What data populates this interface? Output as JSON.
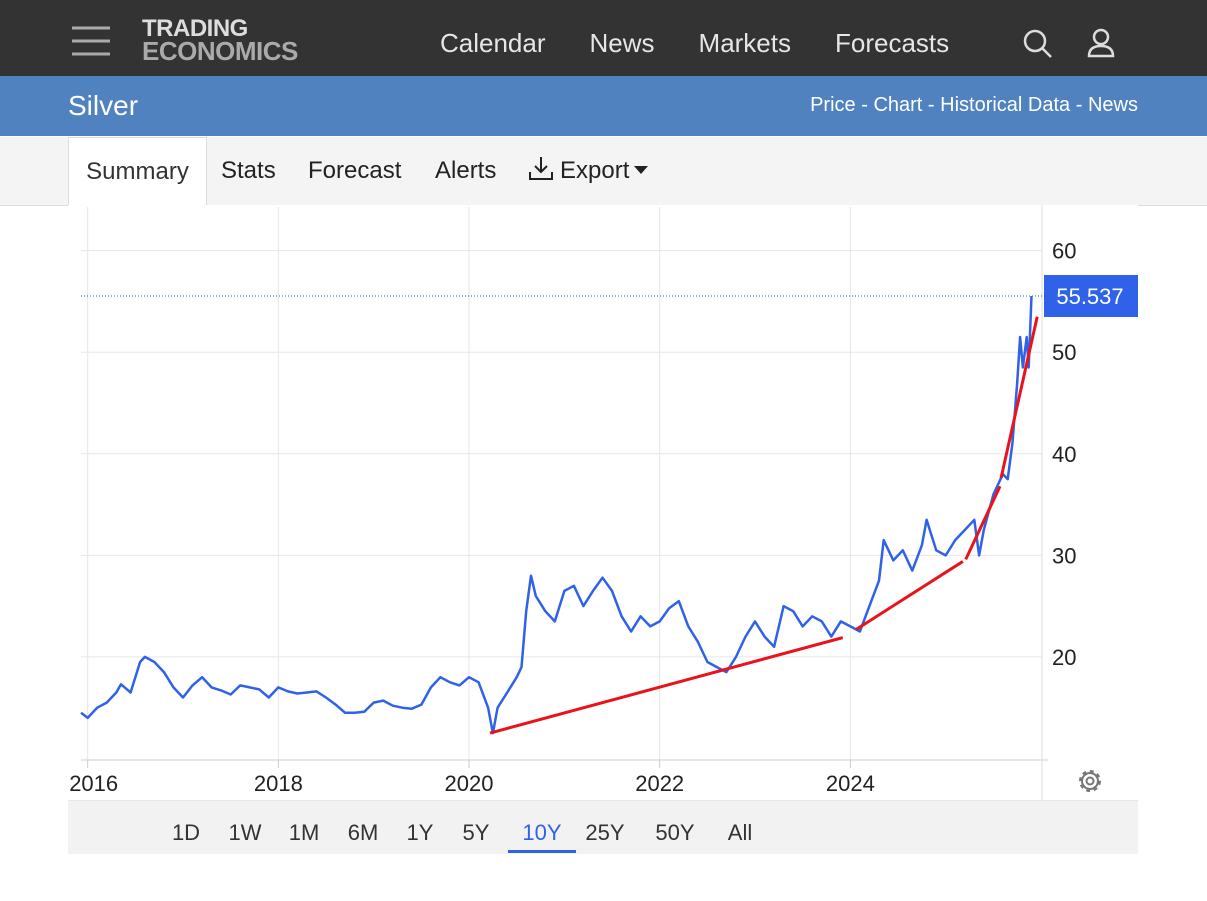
{
  "header": {
    "logo": [
      "TRADING",
      "ECONOMICS"
    ],
    "nav": [
      "Calendar",
      "News",
      "Markets",
      "Forecasts"
    ]
  },
  "subheader": {
    "title": "Silver",
    "links": [
      "Price",
      "Chart",
      "Historical Data",
      "News"
    ],
    "separator": "-"
  },
  "tabs": [
    "Summary",
    "Stats",
    "Forecast",
    "Alerts",
    "Export"
  ],
  "active_tab": 0,
  "ranges": [
    "1D",
    "1W",
    "1M",
    "6M",
    "1Y",
    "5Y",
    "10Y",
    "25Y",
    "50Y",
    "All"
  ],
  "active_range": 6,
  "chart_data": {
    "type": "line",
    "color": "#2f62e8",
    "x": [
      2015.93,
      2016.0,
      2016.1,
      2016.2,
      2016.3,
      2016.35,
      2016.45,
      2016.55,
      2016.6,
      2016.7,
      2016.8,
      2016.9,
      2017.0,
      2017.1,
      2017.2,
      2017.3,
      2017.4,
      2017.5,
      2017.6,
      2017.7,
      2017.8,
      2017.9,
      2018.0,
      2018.1,
      2018.2,
      2018.3,
      2018.4,
      2018.5,
      2018.6,
      2018.7,
      2018.8,
      2018.9,
      2019.0,
      2019.1,
      2019.2,
      2019.3,
      2019.4,
      2019.5,
      2019.6,
      2019.7,
      2019.8,
      2019.9,
      2020.0,
      2020.1,
      2020.2,
      2020.25,
      2020.3,
      2020.4,
      2020.5,
      2020.55,
      2020.6,
      2020.65,
      2020.7,
      2020.8,
      2020.9,
      2021.0,
      2021.1,
      2021.2,
      2021.3,
      2021.4,
      2021.5,
      2021.6,
      2021.7,
      2021.8,
      2021.9,
      2022.0,
      2022.1,
      2022.2,
      2022.3,
      2022.4,
      2022.5,
      2022.6,
      2022.7,
      2022.8,
      2022.9,
      2023.0,
      2023.1,
      2023.2,
      2023.3,
      2023.4,
      2023.5,
      2023.6,
      2023.7,
      2023.8,
      2023.9,
      2024.0,
      2024.1,
      2024.2,
      2024.3,
      2024.35,
      2024.45,
      2024.55,
      2024.65,
      2024.75,
      2024.8,
      2024.9,
      2025.0,
      2025.1,
      2025.2,
      2025.3,
      2025.35,
      2025.4,
      2025.5,
      2025.6,
      2025.65,
      2025.7,
      2025.75,
      2025.78,
      2025.81,
      2025.85,
      2025.87,
      2025.9
    ],
    "values": [
      14.5,
      14.0,
      15.0,
      15.5,
      16.5,
      17.3,
      16.5,
      19.5,
      20.0,
      19.5,
      18.5,
      17.0,
      16.0,
      17.2,
      18.0,
      17.0,
      16.7,
      16.3,
      17.2,
      17.0,
      16.8,
      16.0,
      17.0,
      16.6,
      16.4,
      16.5,
      16.6,
      16.0,
      15.3,
      14.5,
      14.5,
      14.6,
      15.5,
      15.7,
      15.2,
      15.0,
      14.9,
      15.3,
      17.0,
      18.0,
      17.5,
      17.2,
      18.0,
      17.5,
      15.0,
      12.5,
      15.0,
      16.5,
      18.0,
      19.0,
      24.5,
      28.0,
      26.0,
      24.5,
      23.5,
      26.5,
      27.0,
      25.0,
      26.5,
      27.8,
      26.5,
      24.0,
      22.5,
      24.0,
      23.0,
      23.5,
      24.8,
      25.5,
      23.0,
      21.5,
      19.5,
      19.0,
      18.5,
      20.0,
      22.0,
      23.5,
      22.0,
      21.0,
      25.0,
      24.5,
      23.0,
      24.0,
      23.5,
      22.0,
      23.5,
      23.0,
      22.5,
      25.0,
      27.5,
      31.5,
      29.5,
      30.5,
      28.5,
      31.0,
      33.5,
      30.5,
      30.0,
      31.5,
      32.5,
      33.5,
      30.0,
      32.5,
      36.0,
      38.0,
      37.5,
      41.0,
      47.0,
      51.5,
      48.5,
      51.5,
      48.5,
      55.537
    ],
    "trend_lines": [
      {
        "x": [
          2020.22,
          2023.92
        ],
        "values": [
          12.5,
          21.9
        ],
        "color": "#e8141c"
      },
      {
        "x": [
          2024.06,
          2025.18
        ],
        "values": [
          22.7,
          29.4
        ],
        "color": "#e8141c"
      },
      {
        "x": [
          2025.21,
          2025.57
        ],
        "values": [
          29.6,
          36.8
        ],
        "color": "#e8141c"
      },
      {
        "x": [
          2025.58,
          2025.96
        ],
        "values": [
          37.6,
          53.5
        ],
        "color": "#e8141c"
      }
    ],
    "xlim": [
      2015.93,
      2026.01
    ],
    "ylim": [
      9.85,
      64.3
    ],
    "xticks": [
      2016,
      2018,
      2020,
      2022,
      2024
    ],
    "yticks": [
      20,
      30,
      40,
      50,
      60
    ],
    "grid": true
  }
}
